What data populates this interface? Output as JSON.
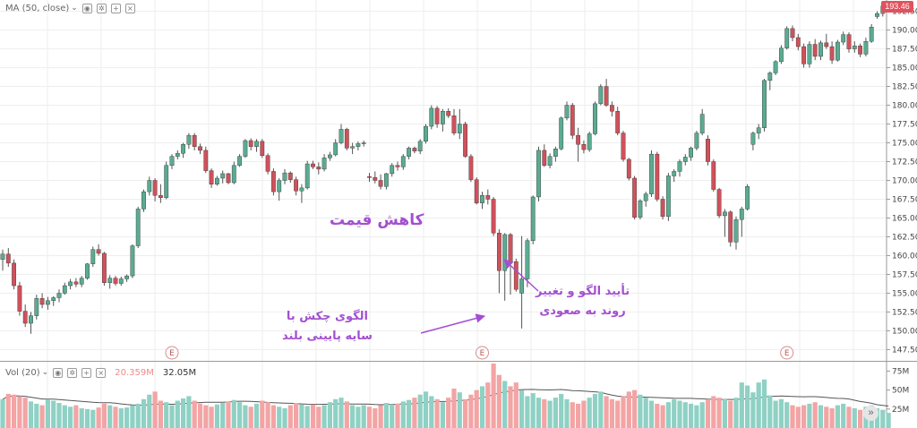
{
  "indicator_legend": {
    "label": "MA (50, close)",
    "controls": [
      "eye",
      "settings",
      "add",
      "close"
    ]
  },
  "volume_legend": {
    "label": "Vol (20)",
    "value_red": "20.359M",
    "value_black": "32.05M"
  },
  "last_price_label": "193.46",
  "annotations": {
    "price_drop": "کاهش قیمت",
    "hammer_line1": "الگوی چکش با",
    "hammer_line2": "سایه پایینی بلند",
    "confirm_line1": "تأیید الگو و تغییر",
    "confirm_line2": "روند به صعودی"
  },
  "earnings_markers": [
    {
      "label": "E",
      "index": 30
    },
    {
      "label": "E",
      "index": 85
    },
    {
      "label": "E",
      "index": 139
    }
  ],
  "scroll_button_icon": "double-chevron-right-icon",
  "colors": {
    "up": "#5aab92",
    "down": "#d0515b",
    "ma_line": "#555555",
    "vol_up": "#8fd1c4",
    "vol_down": "#f3a4a4",
    "annotation": "#a34fd0",
    "last_price_bg": "#e0525d",
    "grid": "#eeeeee"
  },
  "chart_data": [
    {
      "type": "candlestick",
      "title": "",
      "ylabel": "",
      "ylim": [
        146,
        194
      ],
      "y_ticks": [
        147.5,
        150.0,
        152.5,
        155.0,
        157.5,
        160.0,
        162.5,
        165.0,
        167.5,
        170.0,
        172.5,
        175.0,
        177.5,
        180.0,
        182.5,
        185.0,
        187.5,
        190.0,
        192.5
      ],
      "last_price": 193.46,
      "grid": true,
      "candles": [
        [
          159.5,
          160.8,
          158.0,
          160.2
        ],
        [
          160.2,
          161.0,
          158.5,
          159.0
        ],
        [
          159.0,
          159.5,
          155.5,
          156.0
        ],
        [
          156.0,
          156.5,
          152.0,
          152.6
        ],
        [
          152.6,
          153.5,
          150.5,
          151.0
        ],
        [
          151.0,
          152.5,
          149.6,
          152.0
        ],
        [
          152.0,
          154.8,
          151.5,
          154.3
        ],
        [
          154.3,
          155.0,
          153.0,
          153.5
        ],
        [
          153.5,
          154.5,
          152.8,
          154.0
        ],
        [
          154.0,
          154.6,
          153.3,
          154.4
        ],
        [
          154.4,
          155.5,
          153.8,
          155.0
        ],
        [
          155.0,
          156.4,
          154.8,
          156.0
        ],
        [
          156.0,
          156.9,
          155.5,
          156.5
        ],
        [
          156.5,
          157.0,
          155.8,
          156.2
        ],
        [
          156.2,
          157.3,
          155.8,
          157.0
        ],
        [
          157.0,
          159.0,
          156.8,
          158.9
        ],
        [
          158.9,
          161.2,
          158.5,
          160.8
        ],
        [
          160.8,
          161.5,
          160.0,
          160.3
        ],
        [
          160.3,
          160.5,
          156.0,
          156.4
        ],
        [
          156.4,
          157.4,
          155.6,
          157.0
        ],
        [
          157.0,
          157.3,
          156.0,
          156.3
        ],
        [
          156.3,
          157.2,
          156.0,
          156.9
        ],
        [
          156.9,
          157.5,
          156.5,
          157.3
        ],
        [
          157.3,
          161.5,
          157.0,
          161.3
        ],
        [
          161.3,
          166.5,
          161.0,
          166.2
        ],
        [
          166.2,
          168.8,
          165.8,
          168.5
        ],
        [
          168.5,
          170.5,
          168.0,
          170.0
        ],
        [
          170.0,
          170.3,
          167.2,
          168.0
        ],
        [
          168.0,
          169.5,
          167.0,
          167.7
        ],
        [
          167.7,
          172.5,
          167.5,
          172.0
        ],
        [
          172.0,
          173.5,
          171.5,
          173.2
        ],
        [
          173.2,
          174.0,
          172.8,
          173.6
        ],
        [
          173.6,
          175.0,
          173.0,
          174.8
        ],
        [
          174.8,
          176.3,
          174.2,
          176.0
        ],
        [
          176.0,
          176.3,
          174.0,
          174.5
        ],
        [
          174.5,
          174.9,
          173.5,
          174.0
        ],
        [
          174.0,
          174.5,
          171.0,
          171.3
        ],
        [
          171.3,
          171.6,
          169.0,
          169.5
        ],
        [
          169.5,
          170.6,
          169.3,
          170.3
        ],
        [
          170.3,
          171.3,
          169.6,
          170.9
        ],
        [
          170.9,
          171.0,
          169.5,
          169.7
        ],
        [
          169.7,
          172.5,
          169.5,
          172.0
        ],
        [
          172.0,
          173.5,
          171.8,
          173.2
        ],
        [
          173.2,
          175.5,
          173.0,
          175.3
        ],
        [
          175.3,
          175.6,
          174.0,
          174.5
        ],
        [
          174.5,
          175.5,
          173.8,
          175.2
        ],
        [
          175.2,
          175.5,
          173.0,
          173.3
        ],
        [
          173.3,
          173.6,
          170.8,
          171.2
        ],
        [
          171.2,
          171.6,
          168.0,
          168.5
        ],
        [
          168.5,
          170.3,
          167.3,
          170.0
        ],
        [
          170.0,
          171.5,
          169.5,
          171.0
        ],
        [
          171.0,
          171.2,
          169.7,
          170.1
        ],
        [
          170.1,
          170.5,
          168.0,
          168.6
        ],
        [
          168.6,
          169.5,
          167.0,
          169.0
        ],
        [
          169.0,
          172.6,
          168.8,
          172.2
        ],
        [
          172.2,
          172.6,
          171.5,
          171.8
        ],
        [
          171.8,
          172.4,
          170.8,
          171.5
        ],
        [
          171.5,
          173.5,
          171.2,
          173.0
        ],
        [
          173.0,
          173.8,
          172.6,
          173.4
        ],
        [
          173.4,
          175.5,
          173.2,
          175.0
        ],
        [
          175.0,
          177.5,
          174.8,
          176.8
        ],
        [
          176.8,
          177.0,
          174.0,
          174.3
        ],
        [
          174.3,
          175.0,
          173.5,
          174.5
        ],
        [
          174.5,
          175.2,
          174.0,
          174.9
        ],
        [
          174.9,
          175.3,
          174.5,
          175.0
        ],
        [
          170.5,
          171.0,
          169.8,
          170.4
        ],
        [
          170.4,
          171.2,
          169.6,
          170.0
        ],
        [
          170.0,
          170.8,
          168.8,
          169.2
        ],
        [
          169.2,
          171.0,
          168.8,
          170.9
        ],
        [
          170.9,
          172.3,
          170.5,
          172.0
        ],
        [
          172.0,
          172.5,
          171.3,
          171.8
        ],
        [
          171.8,
          173.5,
          171.4,
          173.2
        ],
        [
          173.2,
          174.5,
          172.8,
          174.3
        ],
        [
          174.3,
          174.5,
          173.6,
          173.9
        ],
        [
          173.9,
          175.5,
          173.5,
          175.2
        ],
        [
          175.2,
          177.5,
          174.9,
          177.2
        ],
        [
          177.2,
          180.0,
          176.8,
          179.6
        ],
        [
          179.6,
          179.9,
          177.0,
          177.5
        ],
        [
          177.5,
          179.5,
          176.5,
          179.2
        ],
        [
          179.2,
          179.6,
          178.3,
          178.6
        ],
        [
          178.6,
          179.5,
          176.0,
          176.3
        ],
        [
          176.3,
          179.5,
          175.5,
          177.5
        ],
        [
          177.5,
          177.8,
          173.0,
          173.2
        ],
        [
          173.2,
          173.5,
          169.8,
          170.1
        ],
        [
          170.1,
          170.4,
          166.8,
          167.0
        ],
        [
          167.0,
          168.5,
          166.2,
          168.0
        ],
        [
          168.0,
          168.8,
          166.8,
          167.5
        ],
        [
          167.5,
          167.8,
          162.6,
          163.0
        ],
        [
          163.0,
          163.5,
          155.0,
          158.0
        ],
        [
          158.0,
          163.0,
          154.0,
          162.8
        ],
        [
          162.8,
          163.0,
          154.8,
          159.2
        ],
        [
          159.2,
          159.6,
          155.2,
          155.5
        ],
        [
          155.0,
          162.6,
          150.3,
          156.9
        ],
        [
          156.9,
          162.3,
          155.8,
          162.0
        ],
        [
          162.0,
          168.0,
          161.5,
          167.8
        ],
        [
          167.8,
          174.5,
          167.2,
          174.0
        ],
        [
          174.0,
          174.8,
          171.8,
          172.0
        ],
        [
          172.0,
          173.6,
          171.6,
          173.2
        ],
        [
          173.2,
          174.5,
          172.5,
          174.2
        ],
        [
          174.2,
          178.5,
          174.0,
          178.3
        ],
        [
          178.3,
          180.5,
          178.0,
          180.0
        ],
        [
          180.0,
          180.3,
          175.5,
          176.0
        ],
        [
          176.0,
          177.0,
          172.5,
          174.8
        ],
        [
          174.8,
          175.3,
          173.6,
          174.1
        ],
        [
          174.1,
          176.5,
          173.8,
          176.2
        ],
        [
          176.2,
          180.5,
          176.0,
          180.2
        ],
        [
          180.2,
          182.8,
          180.0,
          182.5
        ],
        [
          182.5,
          183.5,
          179.8,
          180.0
        ],
        [
          180.0,
          180.5,
          178.5,
          179.2
        ],
        [
          179.2,
          179.8,
          176.0,
          176.3
        ],
        [
          176.3,
          176.6,
          172.5,
          172.8
        ],
        [
          172.8,
          173.0,
          170.0,
          170.3
        ],
        [
          170.3,
          170.6,
          164.8,
          165.1
        ],
        [
          165.1,
          167.5,
          164.8,
          167.3
        ],
        [
          167.3,
          168.5,
          166.5,
          168.2
        ],
        [
          168.2,
          174.0,
          167.8,
          173.5
        ],
        [
          173.5,
          173.8,
          167.2,
          167.5
        ],
        [
          167.5,
          167.9,
          164.8,
          165.2
        ],
        [
          165.2,
          171.0,
          164.6,
          170.6
        ],
        [
          170.6,
          171.5,
          169.8,
          171.2
        ],
        [
          171.2,
          172.8,
          170.5,
          172.5
        ],
        [
          172.5,
          173.5,
          172.0,
          173.1
        ],
        [
          173.1,
          174.5,
          172.6,
          174.3
        ],
        [
          174.3,
          176.6,
          174.0,
          176.3
        ],
        [
          176.3,
          179.5,
          176.0,
          178.8
        ],
        [
          175.5,
          176.0,
          172.0,
          172.5
        ],
        [
          172.5,
          172.8,
          168.5,
          168.8
        ],
        [
          168.8,
          169.0,
          165.0,
          165.3
        ],
        [
          165.3,
          166.2,
          162.5,
          165.8
        ],
        [
          165.8,
          166.0,
          161.2,
          161.8
        ],
        [
          161.8,
          165.2,
          160.8,
          164.8
        ],
        [
          164.8,
          166.5,
          162.5,
          166.2
        ],
        [
          166.2,
          169.5,
          166.0,
          169.2
        ],
        [
          174.8,
          176.5,
          174.0,
          176.3
        ],
        [
          176.3,
          177.5,
          175.5,
          177.0
        ],
        [
          177.0,
          183.5,
          176.5,
          183.3
        ],
        [
          183.3,
          184.5,
          182.0,
          184.3
        ],
        [
          184.3,
          186.0,
          184.0,
          185.8
        ],
        [
          185.8,
          188.0,
          185.5,
          187.6
        ],
        [
          187.6,
          190.5,
          187.4,
          190.2
        ],
        [
          190.2,
          190.6,
          188.5,
          189.0
        ],
        [
          189.0,
          189.5,
          187.3,
          187.8
        ],
        [
          187.8,
          188.2,
          185.0,
          185.5
        ],
        [
          185.5,
          188.5,
          185.0,
          188.1
        ],
        [
          188.1,
          188.8,
          186.0,
          186.5
        ],
        [
          186.5,
          188.6,
          186.0,
          188.3
        ],
        [
          188.3,
          189.5,
          187.5,
          187.8
        ],
        [
          187.8,
          188.5,
          185.5,
          186.0
        ],
        [
          186.0,
          188.7,
          185.8,
          188.4
        ],
        [
          188.4,
          189.8,
          188.0,
          189.4
        ],
        [
          189.4,
          189.7,
          187.0,
          187.5
        ],
        [
          187.5,
          188.5,
          187.0,
          187.9
        ],
        [
          187.9,
          188.2,
          186.4,
          186.8
        ],
        [
          186.8,
          189.0,
          186.5,
          188.5
        ],
        [
          188.5,
          190.8,
          188.3,
          190.4
        ],
        [
          191.8,
          192.5,
          191.5,
          192.2
        ],
        [
          192.2,
          193.5,
          191.8,
          193.2
        ],
        [
          193.2,
          193.8,
          192.9,
          193.46
        ]
      ],
      "moving_average": {
        "name": "MA (50, close)",
        "period": 50
      }
    },
    {
      "type": "bar",
      "title": "",
      "name": "Vol (20)",
      "ylim": [
        0,
        85
      ],
      "y_ticks_label": [
        "25M",
        "50M",
        "75M"
      ],
      "y_ticks": [
        25,
        50,
        75
      ],
      "volumes": [
        38,
        45,
        44,
        42,
        40,
        35,
        32,
        30,
        38,
        36,
        33,
        30,
        28,
        30,
        26,
        25,
        24,
        27,
        32,
        30,
        28,
        26,
        27,
        30,
        32,
        38,
        44,
        48,
        36,
        34,
        30,
        36,
        39,
        42,
        36,
        32,
        30,
        28,
        31,
        33,
        35,
        37,
        34,
        30,
        28,
        32,
        36,
        34,
        30,
        28,
        26,
        30,
        33,
        31,
        29,
        31,
        28,
        30,
        34,
        38,
        40,
        35,
        30,
        28,
        30,
        28,
        26,
        30,
        33,
        31,
        32,
        35,
        37,
        40,
        44,
        48,
        42,
        38,
        34,
        40,
        52,
        47,
        38,
        44,
        50,
        55,
        60,
        85,
        70,
        62,
        55,
        60,
        50,
        42,
        46,
        40,
        38,
        36,
        40,
        45,
        38,
        34,
        32,
        36,
        40,
        45,
        48,
        42,
        38,
        36,
        42,
        48,
        50,
        44,
        40,
        36,
        32,
        30,
        34,
        38,
        36,
        34,
        32,
        30,
        34,
        38,
        42,
        40,
        38,
        36,
        40,
        60,
        56,
        47,
        60,
        64,
        43,
        36,
        38,
        34,
        30,
        28,
        30,
        32,
        34,
        30,
        28,
        26,
        30,
        32,
        28,
        26,
        24,
        28,
        30,
        26,
        24,
        20
      ]
    }
  ]
}
